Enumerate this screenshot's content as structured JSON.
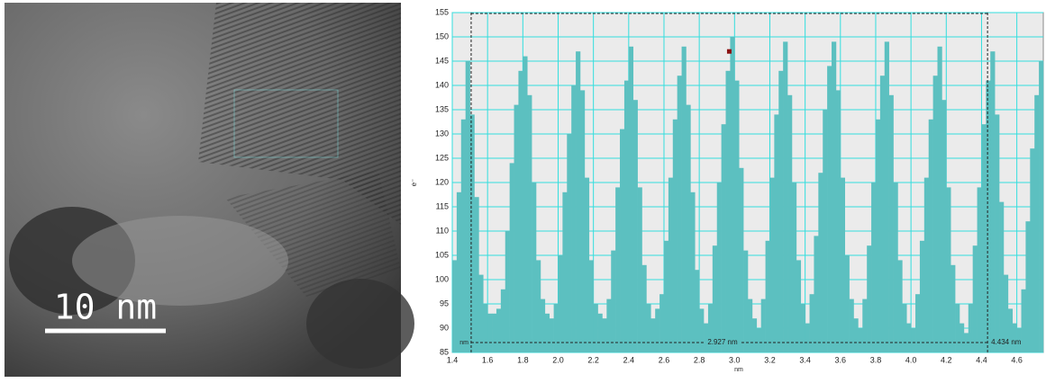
{
  "image": {
    "scale_label": "10 nm"
  },
  "chart_data": {
    "type": "histogram",
    "x_label": "nm",
    "y_label": "e⁻",
    "color": "#5cc0c0",
    "grid": true,
    "grid_color": "#33dede",
    "xlim": [
      1.4,
      4.75
    ],
    "ylim": [
      85,
      155
    ],
    "xticks": [
      1.4,
      1.6,
      1.8,
      {
        "value": 2,
        "label": "2.0"
      },
      2.2,
      2.4,
      2.6,
      2.8,
      {
        "value": 3,
        "label": "3.0"
      },
      3.2,
      3.4,
      3.6,
      3.8,
      {
        "value": 4,
        "label": "4.0"
      },
      4.2,
      4.4,
      4.6
    ],
    "yticks": [
      85,
      90,
      95,
      100,
      105,
      110,
      115,
      120,
      125,
      130,
      135,
      140,
      145,
      150,
      155
    ],
    "bins": [
      1.4,
      1.425,
      1.45,
      1.475,
      1.5,
      1.525,
      1.55,
      1.575,
      1.6,
      1.625,
      1.65,
      1.675,
      1.7,
      1.725,
      1.75,
      1.775,
      1.8,
      1.825,
      1.85,
      1.875,
      1.9,
      1.925,
      1.95,
      1.975,
      2,
      2.025,
      2.05,
      2.075,
      2.1,
      2.125,
      2.15,
      2.175,
      2.2,
      2.225,
      2.25,
      2.275,
      2.3,
      2.325,
      2.35,
      2.375,
      2.4,
      2.425,
      2.45,
      2.475,
      2.5,
      2.525,
      2.55,
      2.575,
      2.6,
      2.625,
      2.65,
      2.675,
      2.7,
      2.725,
      2.75,
      2.775,
      2.8,
      2.825,
      2.85,
      2.875,
      2.9,
      2.925,
      2.95,
      2.975,
      3,
      3.025,
      3.05,
      3.075,
      3.1,
      3.125,
      3.15,
      3.175,
      3.2,
      3.225,
      3.25,
      3.275,
      3.3,
      3.325,
      3.35,
      3.375,
      3.4,
      3.425,
      3.45,
      3.475,
      3.5,
      3.525,
      3.55,
      3.575,
      3.6,
      3.625,
      3.65,
      3.675,
      3.7,
      3.725,
      3.75,
      3.775,
      3.8,
      3.825,
      3.85,
      3.875,
      3.9,
      3.925,
      3.95,
      3.975,
      4,
      4.025,
      4.05,
      4.075,
      4.1,
      4.125,
      4.15,
      4.175,
      4.2,
      4.225,
      4.25,
      4.275,
      4.3,
      4.325,
      4.35,
      4.375,
      4.4,
      4.425,
      4.45,
      4.475,
      4.5,
      4.525,
      4.55,
      4.575,
      4.6,
      4.625,
      4.65,
      4.675,
      4.7,
      4.725,
      4.75
    ],
    "values": [
      104,
      118,
      133,
      145,
      134,
      117,
      101,
      95,
      93,
      93,
      94,
      98,
      110,
      124,
      136,
      143,
      146,
      138,
      120,
      104,
      96,
      93,
      92,
      95,
      105,
      118,
      130,
      140,
      147,
      139,
      121,
      104,
      95,
      93,
      92,
      96,
      106,
      119,
      131,
      141,
      148,
      137,
      119,
      103,
      95,
      92,
      94,
      97,
      108,
      121,
      133,
      142,
      148,
      136,
      118,
      102,
      94,
      91,
      95,
      107,
      120,
      132,
      143,
      150,
      141,
      123,
      106,
      96,
      92,
      90,
      96,
      108,
      121,
      134,
      143,
      149,
      138,
      120,
      104,
      95,
      91,
      97,
      109,
      122,
      135,
      144,
      149,
      139,
      121,
      105,
      96,
      92,
      90,
      96,
      107,
      120,
      133,
      142,
      149,
      138,
      120,
      104,
      95,
      91,
      90,
      97,
      108,
      121,
      133,
      142,
      148,
      137,
      119,
      103,
      95,
      91,
      89,
      95,
      107,
      119,
      132,
      141,
      147,
      134,
      116,
      101,
      94,
      91,
      90,
      98,
      112,
      127,
      138,
      145
    ],
    "measure": {
      "start": 1.507,
      "end": 4.434,
      "start_label": "nm",
      "span_label": "2.927 nm",
      "end_label": "4.434 nm"
    },
    "cursor": [
      2.97,
      147
    ]
  }
}
